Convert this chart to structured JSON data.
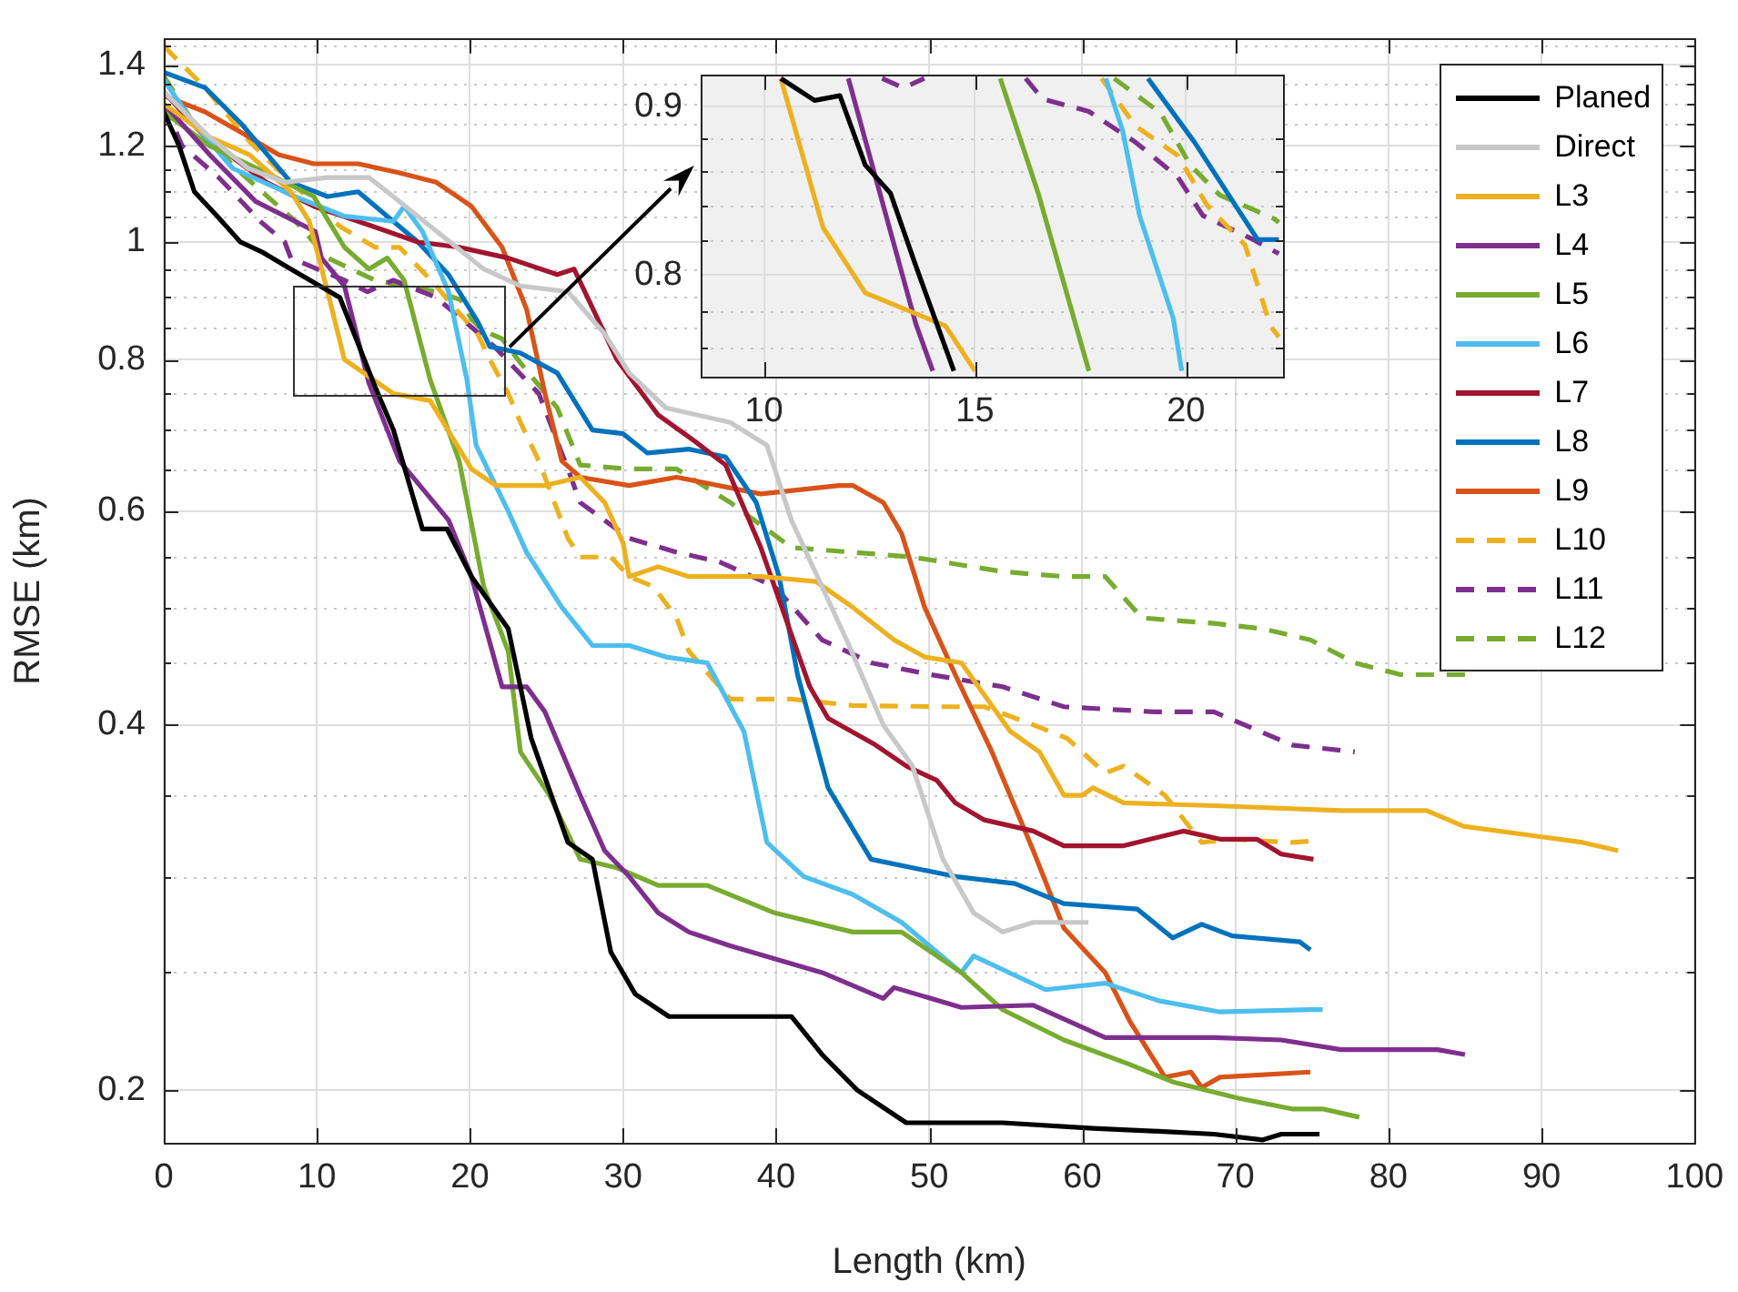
{
  "chart_data": [
    {
      "type": "line",
      "xlabel": "Length (km)",
      "ylabel": "RMSE (km)",
      "xlim": [
        0,
        100
      ],
      "ylim": [
        0.181,
        1.47
      ],
      "xticks": [
        0,
        10,
        20,
        30,
        40,
        50,
        60,
        70,
        80,
        90,
        100
      ],
      "yticks": [
        0.2,
        {
          "value": 0.25,
          "label": null
        },
        {
          "value": 0.3,
          "label": null
        },
        {
          "value": 0.35,
          "label": null
        },
        0.4,
        {
          "value": 0.45,
          "label": null
        },
        {
          "value": 0.5,
          "label": null
        },
        {
          "value": 0.55,
          "label": null
        },
        0.6,
        {
          "value": 0.65,
          "label": null
        },
        {
          "value": 0.7,
          "label": null
        },
        {
          "value": 0.75,
          "label": null
        },
        0.8,
        {
          "value": 0.85,
          "label": null
        },
        {
          "value": 0.9,
          "label": null
        },
        {
          "value": 0.95,
          "label": null
        },
        1,
        {
          "value": 1.05,
          "label": null
        },
        {
          "value": 1.1,
          "label": null
        },
        {
          "value": 1.15,
          "label": null
        },
        1.2,
        {
          "value": 1.25,
          "label": null
        },
        {
          "value": 1.3,
          "label": null
        },
        {
          "value": 1.35,
          "label": null
        },
        1.4,
        {
          "value": 1.45,
          "label": null
        }
      ],
      "log": true,
      "grid": true,
      "legend": "top right",
      "series": [
        {
          "name": "Planed",
          "color": "#000000",
          "line_style": "solid",
          "x": [
            0,
            1,
            2,
            3.5,
            5,
            6.5,
            8.3,
            11.5,
            13.8,
            15,
            16.9,
            18.5,
            20.1,
            22.5,
            24,
            26.4,
            28,
            29.2,
            30.8,
            33,
            35.5,
            41,
            43,
            45.3,
            48.5,
            54.8,
            60.7,
            65,
            68.6,
            71.8,
            73,
            75.5
          ],
          "values": [
            1.28,
            1.2,
            1.1,
            1.05,
            1.0,
            0.98,
            0.95,
            0.9,
            0.76,
            0.7,
            0.58,
            0.58,
            0.53,
            0.48,
            0.39,
            0.32,
            0.31,
            0.26,
            0.24,
            0.23,
            0.23,
            0.23,
            0.214,
            0.2,
            0.188,
            0.188,
            0.186,
            0.185,
            0.184,
            0.182,
            0.184,
            0.184
          ]
        },
        {
          "name": "Direct",
          "color": "#c8c8c8",
          "line_style": "solid",
          "x": [
            0,
            3,
            5.5,
            7.9,
            10.7,
            13.4,
            14.6,
            16.6,
            20.9,
            23.3,
            26.4,
            28.8,
            30.4,
            32.8,
            37,
            39.4,
            41,
            44.6,
            47,
            48.9,
            50.9,
            52.9,
            54.8,
            56.8,
            60.4
          ],
          "values": [
            1.33,
            1.22,
            1.15,
            1.12,
            1.13,
            1.13,
            1.1,
            1.05,
            0.95,
            0.92,
            0.91,
            0.84,
            0.78,
            0.73,
            0.71,
            0.68,
            0.59,
            0.47,
            0.4,
            0.37,
            0.31,
            0.28,
            0.27,
            0.275,
            0.275
          ]
        },
        {
          "name": "L3",
          "color": "#edb120",
          "line_style": "solid",
          "x": [
            0,
            3,
            5.6,
            8.3,
            9.5,
            10.7,
            11.8,
            15,
            17.4,
            20.1,
            21.7,
            24.9,
            27.2,
            28.8,
            30,
            30.4,
            32.3,
            34.3,
            39,
            42.6,
            45,
            47.7,
            49.7,
            52.1,
            55.3,
            57.2,
            58.8,
            60,
            60.7,
            62.7,
            69,
            76.9,
            82.5,
            84.9,
            88.8,
            92.7,
            95
          ],
          "values": [
            1.3,
            1.22,
            1.18,
            1.1,
            1.04,
            0.91,
            0.8,
            0.75,
            0.74,
            0.65,
            0.63,
            0.63,
            0.64,
            0.61,
            0.565,
            0.53,
            0.54,
            0.53,
            0.53,
            0.525,
            0.5,
            0.47,
            0.455,
            0.45,
            0.395,
            0.38,
            0.35,
            0.35,
            0.355,
            0.345,
            0.343,
            0.34,
            0.34,
            0.33,
            0.325,
            0.32,
            0.315
          ]
        },
        {
          "name": "L4",
          "color": "#7e2f8e",
          "line_style": "solid",
          "x": [
            0,
            3,
            6,
            9.9,
            10.3,
            11.8,
            13.4,
            15.4,
            18.6,
            20.1,
            22.1,
            23.7,
            24.9,
            27.2,
            28.8,
            30.4,
            32.3,
            34.3,
            37,
            43,
            47,
            47.7,
            52.1,
            56.8,
            61.5,
            68.6,
            73,
            76.9,
            83.2,
            85
          ],
          "values": [
            1.3,
            1.18,
            1.08,
            1.02,
            0.97,
            0.92,
            0.765,
            0.66,
            0.59,
            0.53,
            0.43,
            0.43,
            0.41,
            0.35,
            0.315,
            0.3,
            0.28,
            0.27,
            0.263,
            0.25,
            0.238,
            0.243,
            0.234,
            0.235,
            0.221,
            0.221,
            0.22,
            0.216,
            0.216,
            0.214
          ]
        },
        {
          "name": "L5",
          "color": "#77ac30",
          "line_style": "solid",
          "x": [
            0,
            3,
            6.7,
            9.8,
            11.8,
            13.4,
            14.6,
            15.7,
            17.4,
            19.3,
            20.9,
            22.5,
            23.3,
            25.2,
            27.2,
            29.6,
            32.3,
            35.5,
            39.9,
            45,
            48.2,
            52.1,
            54.8,
            58.8,
            63.1,
            66,
            70.2,
            73.7,
            75.7,
            78.1
          ],
          "values": [
            1.28,
            1.2,
            1.14,
            1.09,
            0.99,
            0.95,
            0.97,
            0.93,
            0.77,
            0.66,
            0.52,
            0.46,
            0.38,
            0.35,
            0.31,
            0.305,
            0.295,
            0.295,
            0.28,
            0.27,
            0.27,
            0.25,
            0.233,
            0.22,
            0.21,
            0.203,
            0.197,
            0.193,
            0.193,
            0.19
          ]
        },
        {
          "name": "L6",
          "color": "#4dbeee",
          "line_style": "solid",
          "x": [
            0,
            2,
            4.5,
            8.6,
            11.8,
            15,
            15.7,
            16.9,
            18.6,
            19.8,
            20.4,
            22.5,
            23.7,
            26,
            28,
            30.4,
            32.8,
            35.5,
            37.9,
            39.4,
            41.8,
            45,
            48.2,
            52.1,
            52.9,
            57.6,
            61.5,
            65,
            69,
            74.9,
            75.7
          ],
          "values": [
            1.36,
            1.25,
            1.15,
            1.09,
            1.05,
            1.04,
            1.07,
            1.02,
            0.91,
            0.77,
            0.68,
            0.6,
            0.555,
            0.5,
            0.465,
            0.465,
            0.455,
            0.45,
            0.395,
            0.32,
            0.3,
            0.29,
            0.275,
            0.25,
            0.258,
            0.242,
            0.245,
            0.237,
            0.232,
            0.233,
            0.233
          ]
        },
        {
          "name": "L7",
          "color": "#a2142f",
          "line_style": "solid",
          "x": [
            0,
            2.7,
            6.7,
            9.8,
            12.7,
            16.6,
            19.3,
            22.5,
            25.7,
            26.8,
            29.6,
            32.3,
            34.7,
            36.7,
            39,
            42.2,
            43.4,
            46.5,
            48.5,
            50.5,
            51.7,
            53.6,
            56.8,
            58.8,
            62.7,
            66.6,
            69,
            71.4,
            73,
            75.1
          ],
          "values": [
            1.33,
            1.22,
            1.12,
            1.07,
            1.04,
            1.0,
            0.99,
            0.97,
            0.94,
            0.95,
            0.8,
            0.72,
            0.685,
            0.655,
            0.56,
            0.43,
            0.405,
            0.385,
            0.37,
            0.36,
            0.345,
            0.334,
            0.327,
            0.318,
            0.318,
            0.327,
            0.322,
            0.322,
            0.313,
            0.31
          ]
        },
        {
          "name": "L8",
          "color": "#0072bd",
          "line_style": "solid",
          "x": [
            0,
            2.7,
            5.1,
            8.3,
            10.7,
            12.7,
            14.6,
            16.6,
            18.6,
            20.5,
            21.3,
            23.3,
            25.7,
            28,
            30,
            31.6,
            34.3,
            36.7,
            38.7,
            40.2,
            41.4,
            43.4,
            46.2,
            48.9,
            51.7,
            55.6,
            58.8,
            63.6,
            65.9,
            67.8,
            69.8,
            74.2,
            74.9
          ],
          "values": [
            1.38,
            1.34,
            1.25,
            1.12,
            1.09,
            1.1,
            1.05,
            1.0,
            0.94,
            0.86,
            0.82,
            0.81,
            0.78,
            0.7,
            0.695,
            0.67,
            0.675,
            0.665,
            0.61,
            0.53,
            0.44,
            0.355,
            0.31,
            0.305,
            0.3,
            0.296,
            0.285,
            0.282,
            0.267,
            0.274,
            0.268,
            0.265,
            0.261
          ]
        },
        {
          "name": "L9",
          "color": "#d95319",
          "line_style": "solid",
          "x": [
            0,
            2.7,
            5.1,
            7.5,
            9.8,
            12.7,
            15.4,
            17.8,
            20.1,
            22.1,
            23.7,
            24.9,
            26,
            27.2,
            30.4,
            33.5,
            39,
            44.1,
            45,
            47,
            48.2,
            49.7,
            51.7,
            54.1,
            56.8,
            58.8,
            61.5,
            63.1,
            65.4,
            67.1,
            67.8,
            69,
            74.9
          ],
          "values": [
            1.32,
            1.28,
            1.23,
            1.18,
            1.16,
            1.16,
            1.14,
            1.12,
            1.07,
            0.99,
            0.88,
            0.75,
            0.66,
            0.64,
            0.63,
            0.64,
            0.62,
            0.63,
            0.63,
            0.61,
            0.575,
            0.5,
            0.44,
            0.38,
            0.315,
            0.272,
            0.25,
            0.228,
            0.205,
            0.207,
            0.201,
            0.205,
            0.207
          ]
        },
        {
          "name": "L10",
          "color": "#edb120",
          "line_style": "dashed",
          "x": [
            0,
            2.7,
            5.6,
            8.3,
            11.5,
            13.8,
            15.4,
            17.8,
            18.8,
            20.5,
            21.3,
            22.5,
            23.3,
            24.5,
            26.4,
            27.2,
            29.2,
            30.4,
            32,
            33.5,
            34.3,
            37,
            41,
            45,
            50.9,
            53.6,
            56.8,
            59,
            61.5,
            62.7,
            65.4,
            67.8,
            69.8,
            73.7,
            75.1
          ],
          "values": [
            1.45,
            1.34,
            1.21,
            1.12,
            1.03,
            0.99,
            0.99,
            0.92,
            0.888,
            0.84,
            0.8,
            0.75,
            0.71,
            0.66,
            0.57,
            0.55,
            0.55,
            0.53,
            0.52,
            0.49,
            0.46,
            0.42,
            0.42,
            0.415,
            0.414,
            0.414,
            0.4,
            0.39,
            0.365,
            0.37,
            0.35,
            0.32,
            0.322,
            0.32,
            0.321
          ]
        },
        {
          "name": "L11",
          "color": "#7e2f8e",
          "line_style": "dashed",
          "x": [
            0,
            1.2,
            3.6,
            6.3,
            7.9,
            8.3,
            11.8,
            13.3,
            15,
            17.8,
            18.8,
            19.8,
            21.6,
            22.8,
            24.5,
            26.4,
            27.2,
            30.4,
            33.5,
            36.3,
            39.9,
            43,
            46.2,
            50.1,
            54.8,
            58.8,
            64.7,
            68.6,
            73.7,
            77.8
          ],
          "values": [
            1.3,
            1.2,
            1.13,
            1.04,
            1.0,
            0.97,
            0.93,
            0.91,
            0.93,
            0.9,
            0.878,
            0.857,
            0.82,
            0.79,
            0.75,
            0.65,
            0.61,
            0.57,
            0.555,
            0.545,
            0.52,
            0.47,
            0.45,
            0.44,
            0.43,
            0.414,
            0.41,
            0.41,
            0.385,
            0.38
          ]
        },
        {
          "name": "L12",
          "color": "#77ac30",
          "line_style": "dashed",
          "x": [
            0,
            2,
            4.7,
            8.6,
            10.7,
            13.8,
            17.8,
            19.4,
            20.1,
            20.8,
            22.1,
            23.3,
            25.7,
            27.2,
            30.4,
            33.5,
            37,
            41,
            45,
            48.9,
            54.8,
            58.8,
            61.5,
            63.9,
            68.6,
            71.8,
            74.9,
            77.8,
            80.8,
            85
          ],
          "values": [
            1.37,
            1.25,
            1.15,
            1.04,
            0.97,
            0.93,
            0.91,
            0.896,
            0.864,
            0.846,
            0.832,
            0.795,
            0.73,
            0.655,
            0.65,
            0.65,
            0.61,
            0.56,
            0.555,
            0.55,
            0.535,
            0.53,
            0.53,
            0.49,
            0.485,
            0.48,
            0.47,
            0.45,
            0.44,
            0.44
          ]
        }
      ]
    },
    {
      "type": "line",
      "xlim": [
        8.5,
        22.3
      ],
      "ylim": [
        0.745,
        0.92
      ],
      "xticks": [
        10,
        15,
        20
      ],
      "yticks": [
        {
          "value": 0.76,
          "label": null
        },
        {
          "value": 0.78,
          "label": null
        },
        0.8,
        {
          "value": 0.82,
          "label": null
        },
        {
          "value": 0.84,
          "label": null
        },
        {
          "value": 0.86,
          "label": null
        },
        {
          "value": 0.88,
          "label": null
        },
        0.9
      ],
      "log": true,
      "grid": true,
      "series": [
        {
          "color": "#000000",
          "line_style": "solid",
          "x": [
            10.4,
            11.2,
            11.8,
            12.4,
            13,
            13.6,
            14.5
          ],
          "values": [
            0.918,
            0.904,
            0.907,
            0.864,
            0.847,
            0.805,
            0.748
          ]
        },
        {
          "color": "#edb120",
          "line_style": "solid",
          "x": [
            10.4,
            11.4,
            12.4,
            14.3,
            15
          ],
          "values": [
            0.918,
            0.827,
            0.79,
            0.772,
            0.748
          ]
        },
        {
          "color": "#7e2f8e",
          "line_style": "solid",
          "x": [
            12,
            13.6,
            14
          ],
          "values": [
            0.918,
            0.773,
            0.748
          ]
        },
        {
          "color": "#77ac30",
          "line_style": "solid",
          "x": [
            15.6,
            16.5,
            17.7
          ],
          "values": [
            0.918,
            0.847,
            0.748
          ]
        },
        {
          "color": "#4dbeee",
          "line_style": "solid",
          "x": [
            18.1,
            18.5,
            18.9,
            19.7,
            19.9
          ],
          "values": [
            0.918,
            0.885,
            0.834,
            0.776,
            0.748
          ]
        },
        {
          "color": "#0072bd",
          "line_style": "solid",
          "x": [
            19.1,
            20.2,
            21.7,
            22.2
          ],
          "values": [
            0.918,
            0.878,
            0.82,
            0.82
          ]
        },
        {
          "color": "#edb120",
          "line_style": "dashed",
          "x": [
            18,
            18.8,
            19.8,
            20.5,
            21.4,
            22,
            22.2
          ],
          "values": [
            0.918,
            0.888,
            0.87,
            0.84,
            0.817,
            0.772,
            0.766
          ]
        },
        {
          "color": "#7e2f8e",
          "line_style": "dashed",
          "x": [
            12.8,
            13.3,
            13.8,
            15,
            16.2,
            16.6,
            17.7,
            18.8,
            19.8,
            20.4,
            21.6,
            22.2
          ],
          "values": [
            0.918,
            0.912,
            0.918,
            null,
            0.918,
            0.905,
            0.897,
            0.878,
            0.857,
            0.834,
            0.82,
            0.812
          ]
        },
        {
          "color": "#77ac30",
          "line_style": "dashed",
          "x": [
            18.3,
            19.4,
            20.1,
            20.8,
            22.1,
            22.2
          ],
          "values": [
            0.918,
            0.896,
            0.864,
            0.846,
            0.832,
            0.83
          ]
        }
      ]
    }
  ]
}
